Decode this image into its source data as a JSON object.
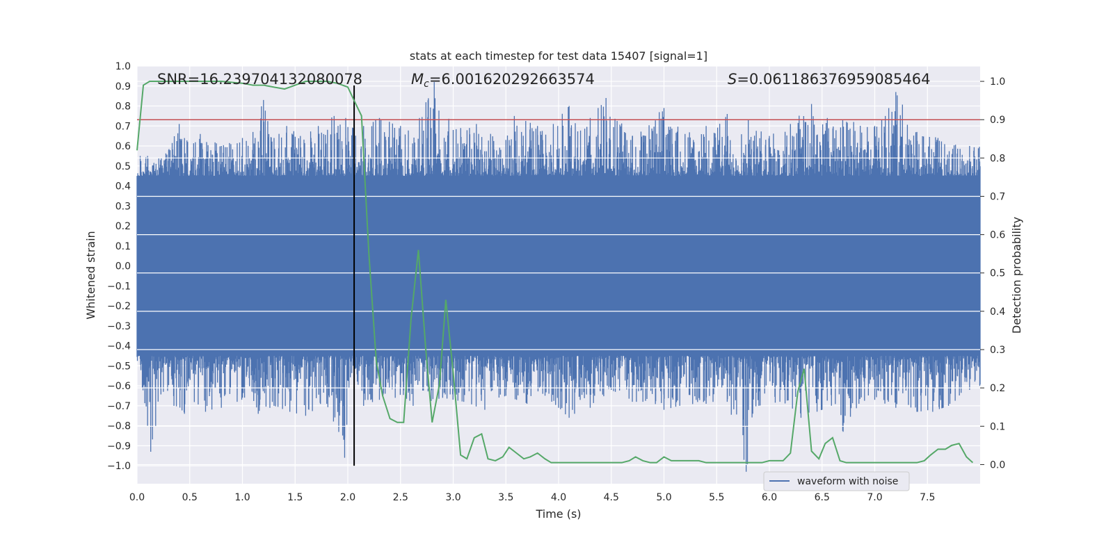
{
  "chart_data": {
    "type": "line",
    "title": "stats at each timestep for test data 15407 [signal=1]",
    "xlabel": "Time (s)",
    "ylabel": "Whitened strain",
    "y2label": "Detection probability",
    "xlim": [
      0,
      8
    ],
    "ylim": [
      -1.09,
      1.0
    ],
    "y2lim": [
      -0.05,
      1.04
    ],
    "xticks": [
      0.0,
      0.5,
      1.0,
      1.5,
      2.0,
      2.5,
      3.0,
      3.5,
      4.0,
      4.5,
      5.0,
      5.5,
      6.0,
      6.5,
      7.0,
      7.5
    ],
    "xtick_labels": [
      "0.0",
      "0.5",
      "1.0",
      "1.5",
      "2.0",
      "2.5",
      "3.0",
      "3.5",
      "4.0",
      "4.5",
      "5.0",
      "5.5",
      "6.0",
      "6.5",
      "7.0",
      "7.5"
    ],
    "yticks": [
      1.0,
      0.9,
      0.8,
      0.7,
      0.6,
      0.5,
      0.4,
      0.3,
      0.2,
      0.1,
      0.0,
      -0.1,
      -0.2,
      -0.3,
      -0.4,
      -0.5,
      -0.6,
      -0.7,
      -0.8,
      -0.9,
      -1.0
    ],
    "ytick_labels": [
      "1.0",
      "0.9",
      "0.8",
      "0.7",
      "0.6",
      "0.5",
      "0.4",
      "0.3",
      "0.2",
      "0.1",
      "0.0",
      "−0.1",
      "−0.2",
      "−0.3",
      "−0.4",
      "−0.5",
      "−0.6",
      "−0.7",
      "−0.8",
      "−0.9",
      "−1.0"
    ],
    "y2ticks": [
      1.0,
      0.9,
      0.8,
      0.7,
      0.6,
      0.5,
      0.4,
      0.3,
      0.2,
      0.1,
      0.0
    ],
    "y2tick_labels": [
      "1.0",
      "0.9",
      "0.8",
      "0.7",
      "0.6",
      "0.5",
      "0.4",
      "0.3",
      "0.2",
      "0.1",
      "0.0"
    ],
    "annotations": {
      "snr": "SNR=16.239704132080078",
      "mc_symbol": "M",
      "mc_sub": "c",
      "mc_value": "=6.001620292663574",
      "s_symbol": "S",
      "s_value": "=0.061186376959085464"
    },
    "threshold": 0.9,
    "vline_x": 2.06,
    "legend": [
      "waveform with noise"
    ],
    "waveform": {
      "name": "waveform with noise",
      "core_band": [
        -0.45,
        0.45
      ],
      "peak_max": [
        [
          0.1,
          0.55
        ],
        [
          0.3,
          0.58
        ],
        [
          0.4,
          0.71
        ],
        [
          0.48,
          0.62
        ],
        [
          0.6,
          0.66
        ],
        [
          0.8,
          0.6
        ],
        [
          1.0,
          0.64
        ],
        [
          1.1,
          0.67
        ],
        [
          1.2,
          0.83
        ],
        [
          1.3,
          0.64
        ],
        [
          1.42,
          0.7
        ],
        [
          1.55,
          0.65
        ],
        [
          1.72,
          0.7
        ],
        [
          1.87,
          0.75
        ],
        [
          1.98,
          0.74
        ],
        [
          2.05,
          0.69
        ],
        [
          2.15,
          0.7
        ],
        [
          2.3,
          0.74
        ],
        [
          2.5,
          0.7
        ],
        [
          2.68,
          0.74
        ],
        [
          2.82,
          0.92
        ],
        [
          3.0,
          0.68
        ],
        [
          3.22,
          0.71
        ],
        [
          3.5,
          0.63
        ],
        [
          3.58,
          0.75
        ],
        [
          3.8,
          0.7
        ],
        [
          3.95,
          0.71
        ],
        [
          4.1,
          0.8
        ],
        [
          4.3,
          0.74
        ],
        [
          4.45,
          0.84
        ],
        [
          4.7,
          0.65
        ],
        [
          5.0,
          0.79
        ],
        [
          5.2,
          0.66
        ],
        [
          5.4,
          0.7
        ],
        [
          5.6,
          0.76
        ],
        [
          5.8,
          0.73
        ],
        [
          6.0,
          0.65
        ],
        [
          6.2,
          0.71
        ],
        [
          6.4,
          0.81
        ],
        [
          6.55,
          0.74
        ],
        [
          6.8,
          0.72
        ],
        [
          7.0,
          0.7
        ],
        [
          7.1,
          0.75
        ],
        [
          7.2,
          0.87
        ],
        [
          7.4,
          0.67
        ],
        [
          7.6,
          0.64
        ],
        [
          7.9,
          0.6
        ]
      ],
      "peak_min": [
        [
          0.05,
          -0.61
        ],
        [
          0.1,
          -0.8
        ],
        [
          0.13,
          -0.93
        ],
        [
          0.25,
          -0.63
        ],
        [
          0.35,
          -0.7
        ],
        [
          0.45,
          -0.74
        ],
        [
          0.65,
          -0.73
        ],
        [
          0.8,
          -0.71
        ],
        [
          0.95,
          -0.68
        ],
        [
          1.15,
          -0.74
        ],
        [
          1.3,
          -0.7
        ],
        [
          1.45,
          -0.73
        ],
        [
          1.6,
          -0.75
        ],
        [
          1.8,
          -0.69
        ],
        [
          1.97,
          -0.96
        ],
        [
          2.05,
          -0.5
        ],
        [
          2.15,
          -0.7
        ],
        [
          2.3,
          -0.67
        ],
        [
          2.45,
          -0.66
        ],
        [
          2.62,
          -0.7
        ],
        [
          2.9,
          -0.66
        ],
        [
          3.1,
          -0.68
        ],
        [
          3.3,
          -0.72
        ],
        [
          3.5,
          -0.65
        ],
        [
          3.7,
          -0.69
        ],
        [
          3.85,
          -0.64
        ],
        [
          4.0,
          -0.71
        ],
        [
          4.1,
          -0.76
        ],
        [
          4.3,
          -0.71
        ],
        [
          4.5,
          -0.62
        ],
        [
          4.7,
          -0.68
        ],
        [
          4.8,
          -0.68
        ],
        [
          5.0,
          -0.72
        ],
        [
          5.15,
          -0.7
        ],
        [
          5.4,
          -0.69
        ],
        [
          5.6,
          -0.68
        ],
        [
          5.78,
          -1.03
        ],
        [
          5.9,
          -0.7
        ],
        [
          6.1,
          -0.68
        ],
        [
          6.3,
          -0.76
        ],
        [
          6.5,
          -0.72
        ],
        [
          6.7,
          -0.83
        ],
        [
          6.85,
          -0.69
        ],
        [
          7.0,
          -0.67
        ],
        [
          7.2,
          -0.71
        ],
        [
          7.4,
          -0.73
        ],
        [
          7.55,
          -0.73
        ],
        [
          7.7,
          -0.7
        ],
        [
          7.9,
          -0.62
        ]
      ]
    },
    "detection_probability": {
      "name": "detection probability",
      "x": [
        0.0,
        0.06,
        0.12,
        0.2,
        0.4,
        0.6,
        0.8,
        1.0,
        1.1,
        1.2,
        1.3,
        1.4,
        1.5,
        1.6,
        1.8,
        1.9,
        2.0,
        2.06,
        2.13,
        2.2,
        2.27,
        2.33,
        2.4,
        2.47,
        2.53,
        2.6,
        2.67,
        2.74,
        2.8,
        2.87,
        2.93,
        3.0,
        3.07,
        3.13,
        3.2,
        3.27,
        3.33,
        3.4,
        3.47,
        3.53,
        3.6,
        3.67,
        3.73,
        3.8,
        3.87,
        3.93,
        4.0,
        4.2,
        4.4,
        4.6,
        4.67,
        4.73,
        4.8,
        4.87,
        4.93,
        5.0,
        5.07,
        5.13,
        5.2,
        5.27,
        5.33,
        5.4,
        5.47,
        5.53,
        5.6,
        5.67,
        5.73,
        5.8,
        5.87,
        5.93,
        6.0,
        6.07,
        6.13,
        6.2,
        6.27,
        6.33,
        6.4,
        6.47,
        6.53,
        6.6,
        6.67,
        6.73,
        6.8,
        6.87,
        6.93,
        7.0,
        7.2,
        7.4,
        7.47,
        7.53,
        7.6,
        7.67,
        7.73,
        7.8,
        7.87,
        7.93
      ],
      "y": [
        0.82,
        0.99,
        1.0,
        1.0,
        1.0,
        1.0,
        1.0,
        0.995,
        0.99,
        0.99,
        0.985,
        0.98,
        0.99,
        1.0,
        1.0,
        0.995,
        0.985,
        0.95,
        0.91,
        0.55,
        0.27,
        0.18,
        0.12,
        0.11,
        0.11,
        0.38,
        0.56,
        0.3,
        0.11,
        0.21,
        0.43,
        0.24,
        0.025,
        0.015,
        0.07,
        0.08,
        0.015,
        0.01,
        0.02,
        0.045,
        0.03,
        0.015,
        0.02,
        0.03,
        0.015,
        0.005,
        0.005,
        0.005,
        0.005,
        0.005,
        0.01,
        0.02,
        0.01,
        0.005,
        0.005,
        0.02,
        0.01,
        0.01,
        0.01,
        0.01,
        0.01,
        0.005,
        0.005,
        0.005,
        0.005,
        0.005,
        0.005,
        0.005,
        0.005,
        0.005,
        0.01,
        0.01,
        0.01,
        0.03,
        0.19,
        0.25,
        0.035,
        0.015,
        0.055,
        0.07,
        0.01,
        0.005,
        0.005,
        0.005,
        0.005,
        0.005,
        0.005,
        0.005,
        0.01,
        0.025,
        0.04,
        0.04,
        0.05,
        0.055,
        0.02,
        0.005
      ]
    },
    "colors": {
      "waveform": "#4c72b0",
      "probability": "#55a868",
      "threshold": "#c44e52",
      "vline": "#000000",
      "plot_bg": "#eaeaf2",
      "grid": "#ffffff"
    }
  }
}
